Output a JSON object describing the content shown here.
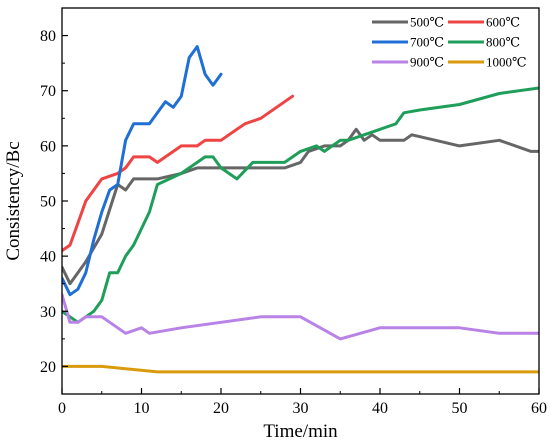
{
  "chart_data": {
    "type": "line",
    "title": "",
    "xlabel": "Time/min",
    "ylabel": "Consistency/Bc",
    "xlim": [
      0,
      60
    ],
    "ylim": [
      15,
      85
    ],
    "xticks": [
      0,
      10,
      20,
      30,
      40,
      50,
      60
    ],
    "yticks": [
      20,
      30,
      40,
      50,
      60,
      70,
      80
    ],
    "grid": false,
    "legend_position": "top-right",
    "series": [
      {
        "name": "500℃",
        "color": "#666666",
        "x": [
          0,
          1,
          3,
          5,
          7,
          8,
          9,
          12,
          15,
          17,
          19,
          20,
          25,
          28,
          30,
          31,
          33,
          35,
          36,
          37,
          38,
          39,
          40,
          41,
          43,
          44,
          47,
          50,
          55,
          59,
          60
        ],
        "y": [
          38,
          35,
          39,
          44,
          53,
          52,
          54,
          54,
          55,
          56,
          56,
          56,
          56,
          56,
          57,
          59,
          60,
          60,
          61,
          63,
          61,
          62,
          61,
          61,
          61,
          62,
          61,
          60,
          61,
          59,
          59
        ]
      },
      {
        "name": "600℃",
        "color": "#ee4444",
        "x": [
          0,
          1,
          2,
          3,
          5,
          7,
          8,
          9,
          10,
          11,
          12,
          13,
          15,
          17,
          18,
          20,
          21,
          23,
          25,
          27,
          29
        ],
        "y": [
          41,
          42,
          46,
          50,
          54,
          55,
          56,
          58,
          58,
          58,
          57,
          58,
          60,
          60,
          61,
          61,
          62,
          64,
          65,
          67,
          69
        ]
      },
      {
        "name": "700℃",
        "color": "#1f6fd6",
        "x": [
          0,
          1,
          2,
          3,
          4,
          5,
          6,
          7,
          8,
          9,
          10,
          11,
          12,
          13,
          14,
          15,
          16,
          17,
          18,
          19,
          20
        ],
        "y": [
          36,
          33,
          34,
          37,
          43,
          48,
          52,
          53,
          61,
          64,
          64,
          64,
          66,
          68,
          67,
          69,
          76,
          78,
          73,
          71,
          73
        ]
      },
      {
        "name": "800℃",
        "color": "#1f9e5a",
        "x": [
          0,
          1,
          2,
          3,
          4,
          5,
          6,
          7,
          8,
          9,
          10,
          11,
          12,
          15,
          17,
          18,
          19,
          20,
          22,
          24,
          26,
          28,
          29,
          30,
          32,
          33,
          35,
          36,
          38,
          40,
          42,
          43,
          45,
          50,
          55,
          60
        ],
        "y": [
          30,
          29,
          28,
          29,
          30,
          32,
          37,
          37,
          40,
          42,
          45,
          48,
          53,
          55,
          57,
          58,
          58,
          56,
          54,
          57,
          57,
          57,
          58,
          59,
          60,
          59,
          61,
          61,
          62,
          63,
          64,
          66,
          66.5,
          67.5,
          69.5,
          70.5
        ]
      },
      {
        "name": "900℃",
        "color": "#b982e6",
        "x": [
          0,
          1,
          2,
          3,
          4,
          5,
          8,
          10,
          11,
          15,
          20,
          25,
          30,
          35,
          40,
          45,
          50,
          55,
          60
        ],
        "y": [
          33,
          28,
          28,
          29,
          29,
          29,
          26,
          27,
          26,
          27,
          28,
          29,
          29,
          25,
          27,
          27,
          27,
          26,
          26
        ]
      },
      {
        "name": "1000℃",
        "color": "#d99a0b",
        "x": [
          0,
          2,
          5,
          12,
          20,
          30,
          40,
          50,
          60
        ],
        "y": [
          20,
          20,
          20,
          19,
          19,
          19,
          19,
          19,
          19
        ]
      }
    ]
  }
}
